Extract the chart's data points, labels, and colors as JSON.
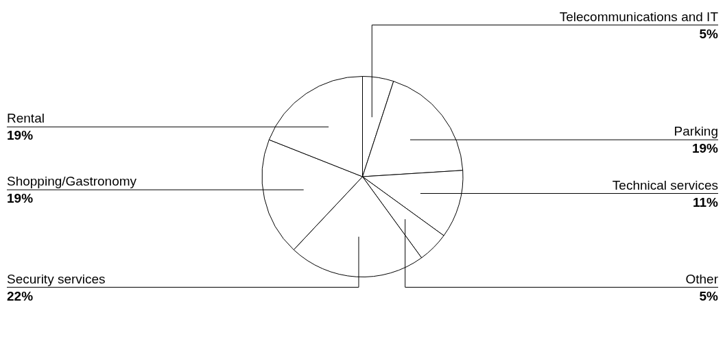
{
  "chart_data": {
    "type": "pie",
    "categories": [
      "Telecommunications and IT",
      "Parking",
      "Technical services",
      "Other",
      "Security services",
      "Shopping/Gastronomy",
      "Rental"
    ],
    "values": [
      5,
      19,
      11,
      5,
      22,
      19,
      19
    ],
    "colors": [
      "#ffffff",
      "#ffffff",
      "#ffffff",
      "#ffffff",
      "#ffffff",
      "#ffffff",
      "#ffffff"
    ],
    "value_labels": [
      "5%",
      "19%",
      "11%",
      "5%",
      "22%",
      "19%",
      "19%"
    ]
  }
}
